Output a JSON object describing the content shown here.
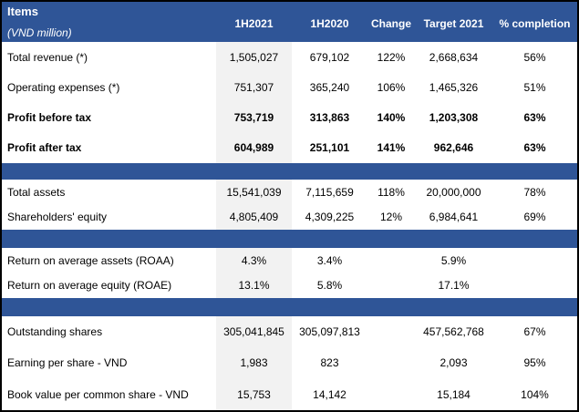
{
  "colors": {
    "accent_blue": "#2F5597",
    "stripe_gray": "#F2F2F2",
    "border_black": "#000000",
    "header_text": "#FFFFFF",
    "body_text": "#000000"
  },
  "header": {
    "items_label": "Items",
    "unit_label": "(VND million)",
    "columns": [
      "1H2021",
      "1H2020",
      "Change",
      "Target 2021",
      "% completion"
    ]
  },
  "sections": [
    {
      "rows": [
        {
          "label": "Total revenue (*)",
          "bold": false,
          "values": [
            "1,505,027",
            "679,102",
            "122%",
            "2,668,634",
            "56%"
          ]
        },
        {
          "label": "Operating expenses (*)",
          "bold": false,
          "values": [
            "751,307",
            "365,240",
            "106%",
            "1,465,326",
            "51%"
          ]
        },
        {
          "label": "Profit before tax",
          "bold": true,
          "values": [
            "753,719",
            "313,863",
            "140%",
            "1,203,308",
            "63%"
          ]
        },
        {
          "label": "Profit after tax",
          "bold": true,
          "values": [
            "604,989",
            "251,101",
            "141%",
            "962,646",
            "63%"
          ]
        }
      ]
    },
    {
      "rows": [
        {
          "label": "Total assets",
          "bold": false,
          "values": [
            "15,541,039",
            "7,115,659",
            "118%",
            "20,000,000",
            "78%"
          ]
        },
        {
          "label": "Shareholders' equity",
          "bold": false,
          "values": [
            "4,805,409",
            "4,309,225",
            "12%",
            "6,984,641",
            "69%"
          ]
        }
      ]
    },
    {
      "rows": [
        {
          "label": "Return on average assets (ROAA)",
          "bold": false,
          "values": [
            "4.3%",
            "3.4%",
            "",
            "5.9%",
            ""
          ]
        },
        {
          "label": "Return on average equity (ROAE)",
          "bold": false,
          "values": [
            "13.1%",
            "5.8%",
            "",
            "17.1%",
            ""
          ]
        }
      ]
    },
    {
      "rows": [
        {
          "label": "Outstanding shares",
          "bold": false,
          "values": [
            "305,041,845",
            "305,097,813",
            "",
            "457,562,768",
            "67%"
          ]
        },
        {
          "label": "Earning per share - VND",
          "bold": false,
          "values": [
            "1,983",
            "823",
            "",
            "2,093",
            "95%"
          ]
        },
        {
          "label": "Book value per common share - VND",
          "bold": false,
          "values": [
            "15,753",
            "14,142",
            "",
            "15,184",
            "104%"
          ]
        }
      ]
    }
  ]
}
